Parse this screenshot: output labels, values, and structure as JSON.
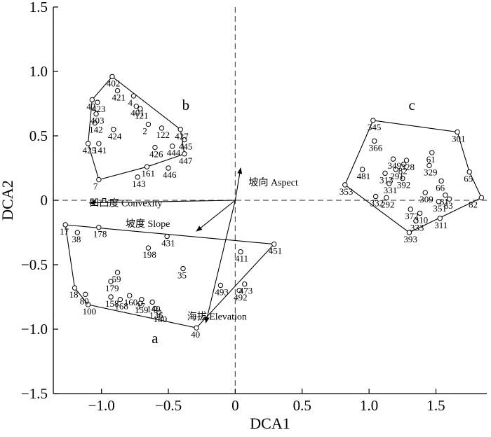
{
  "chart_data": {
    "type": "scatter",
    "xlabel": "DCA1",
    "ylabel": "DCA2",
    "xlim": [
      -1.36,
      1.88
    ],
    "ylim": [
      -1.5,
      1.5
    ],
    "xticks": [
      -1.0,
      -0.5,
      0,
      0.5,
      1.0,
      1.5
    ],
    "xtick_labels": [
      "−1.0",
      "−0.5",
      "0",
      "0.5",
      "1.0",
      "1.5"
    ],
    "yticks": [
      -1.5,
      -1.0,
      -0.5,
      0,
      0.5,
      1.0,
      1.5
    ],
    "ytick_labels": [
      "−1.5",
      "−1.0",
      "−0.5",
      "0",
      "0.5",
      "1.0",
      "1.5"
    ],
    "reference_lines": {
      "x": 0,
      "y": 0,
      "style": "dashed"
    },
    "points": [
      {
        "label": "402",
        "x": -0.92,
        "y": 0.96
      },
      {
        "label": "421",
        "x": -0.88,
        "y": 0.85
      },
      {
        "label": "4",
        "x": -0.76,
        "y": 0.81
      },
      {
        "label": "42",
        "x": -1.07,
        "y": 0.78
      },
      {
        "label": "423",
        "x": -1.03,
        "y": 0.76
      },
      {
        "label": "401",
        "x": -0.74,
        "y": 0.73
      },
      {
        "label": "121",
        "x": -0.71,
        "y": 0.71
      },
      {
        "label": "403",
        "x": -1.04,
        "y": 0.67
      },
      {
        "label": "2",
        "x": -0.65,
        "y": 0.59
      },
      {
        "label": "142",
        "x": -1.05,
        "y": 0.6
      },
      {
        "label": "424",
        "x": -0.91,
        "y": 0.55
      },
      {
        "label": "122",
        "x": -0.55,
        "y": 0.56
      },
      {
        "label": "427",
        "x": -0.41,
        "y": 0.55
      },
      {
        "label": "425",
        "x": -1.1,
        "y": 0.44
      },
      {
        "label": "141",
        "x": -1.02,
        "y": 0.44
      },
      {
        "label": "445",
        "x": -0.38,
        "y": 0.47
      },
      {
        "label": "426",
        "x": -0.6,
        "y": 0.41
      },
      {
        "label": "444",
        "x": -0.47,
        "y": 0.42
      },
      {
        "label": "447",
        "x": -0.38,
        "y": 0.36
      },
      {
        "label": "446",
        "x": -0.5,
        "y": 0.25
      },
      {
        "label": "161",
        "x": -0.66,
        "y": 0.26
      },
      {
        "label": "143",
        "x": -0.73,
        "y": 0.18
      },
      {
        "label": "7",
        "x": -1.02,
        "y": 0.16
      },
      {
        "label": "345",
        "x": 1.03,
        "y": 0.62
      },
      {
        "label": "301",
        "x": 1.66,
        "y": 0.53
      },
      {
        "label": "366",
        "x": 1.04,
        "y": 0.46
      },
      {
        "label": "61",
        "x": 1.47,
        "y": 0.37
      },
      {
        "label": "349",
        "x": 1.18,
        "y": 0.32
      },
      {
        "label": "328",
        "x": 1.28,
        "y": 0.31
      },
      {
        "label": "82",
        "x": 1.26,
        "y": 0.28
      },
      {
        "label": "329",
        "x": 1.45,
        "y": 0.27
      },
      {
        "label": "481",
        "x": 0.95,
        "y": 0.24
      },
      {
        "label": "313",
        "x": 1.12,
        "y": 0.21
      },
      {
        "label": "291",
        "x": 1.2,
        "y": 0.24
      },
      {
        "label": "392",
        "x": 1.25,
        "y": 0.17
      },
      {
        "label": "65",
        "x": 1.75,
        "y": 0.22
      },
      {
        "label": "331",
        "x": 1.15,
        "y": 0.13
      },
      {
        "label": "66",
        "x": 1.54,
        "y": 0.15
      },
      {
        "label": "353",
        "x": 0.82,
        "y": 0.12
      },
      {
        "label": "309",
        "x": 1.42,
        "y": 0.06
      },
      {
        "label": "332",
        "x": 1.05,
        "y": 0.03
      },
      {
        "label": "292",
        "x": 1.13,
        "y": 0.02
      },
      {
        "label": "81",
        "x": 1.57,
        "y": 0.04
      },
      {
        "label": "63",
        "x": 1.6,
        "y": 0.01
      },
      {
        "label": "351",
        "x": 1.52,
        "y": -0.01
      },
      {
        "label": "82",
        "x": 1.84,
        "y": 0.02
      },
      {
        "label": "372",
        "x": 1.31,
        "y": -0.07
      },
      {
        "label": "310",
        "x": 1.38,
        "y": -0.1
      },
      {
        "label": "311",
        "x": 1.53,
        "y": -0.14
      },
      {
        "label": "333",
        "x": 1.35,
        "y": -0.16
      },
      {
        "label": "393",
        "x": 1.3,
        "y": -0.25
      },
      {
        "label": "17",
        "x": -1.27,
        "y": -0.19
      },
      {
        "label": "38",
        "x": -1.18,
        "y": -0.25
      },
      {
        "label": "178",
        "x": -1.02,
        "y": -0.21
      },
      {
        "label": "431",
        "x": -0.51,
        "y": -0.28
      },
      {
        "label": "198",
        "x": -0.65,
        "y": -0.37
      },
      {
        "label": "451",
        "x": 0.29,
        "y": -0.34
      },
      {
        "label": "411",
        "x": 0.04,
        "y": -0.4
      },
      {
        "label": "35",
        "x": -0.39,
        "y": -0.53
      },
      {
        "label": "59",
        "x": -0.88,
        "y": -0.56
      },
      {
        "label": "179",
        "x": -0.93,
        "y": -0.63
      },
      {
        "label": "473",
        "x": 0.07,
        "y": -0.65
      },
      {
        "label": "493",
        "x": -0.11,
        "y": -0.66
      },
      {
        "label": "492",
        "x": 0.03,
        "y": -0.7
      },
      {
        "label": "18",
        "x": -1.2,
        "y": -0.68
      },
      {
        "label": "80",
        "x": -1.12,
        "y": -0.73
      },
      {
        "label": "160",
        "x": -0.79,
        "y": -0.74
      },
      {
        "label": "158",
        "x": -0.93,
        "y": -0.75
      },
      {
        "label": "168",
        "x": -0.86,
        "y": -0.77
      },
      {
        "label": "37",
        "x": -0.7,
        "y": -0.77
      },
      {
        "label": "159",
        "x": -0.71,
        "y": -0.8
      },
      {
        "label": "140",
        "x": -0.62,
        "y": -0.79
      },
      {
        "label": "100",
        "x": -1.1,
        "y": -0.81
      },
      {
        "label": "136",
        "x": -0.6,
        "y": -0.84
      },
      {
        "label": "180",
        "x": -0.57,
        "y": -0.87
      },
      {
        "label": "40",
        "x": -0.29,
        "y": -0.99
      }
    ],
    "groups": [
      {
        "name": "a",
        "label_pos": [
          -0.6,
          -1.11
        ],
        "hull": [
          "17",
          "451",
          "40",
          "100",
          "18"
        ]
      },
      {
        "name": "b",
        "label_pos": [
          -0.37,
          0.7
        ],
        "hull": [
          "402",
          "427",
          "447",
          "161",
          "7",
          "425",
          "42"
        ]
      },
      {
        "name": "c",
        "label_pos": [
          1.32,
          0.7
        ],
        "hull": [
          "345",
          "301",
          "65",
          "82",
          "393",
          "353"
        ]
      }
    ],
    "vectors": [
      {
        "label": "坡向 Aspect",
        "x": 0.04,
        "y": 0.25,
        "label_pos": [
          0.1,
          0.14
        ]
      },
      {
        "label": "凹凸度 Convexity",
        "x": -1.09,
        "y": -0.02,
        "label_pos": [
          -1.09,
          -0.02
        ]
      },
      {
        "label": "坡度 Slope",
        "x": -0.29,
        "y": -0.24,
        "label_pos": [
          -0.82,
          -0.18
        ]
      },
      {
        "label": "海拔 Elevation",
        "x": -0.22,
        "y": -0.95,
        "label_pos": [
          -0.36,
          -0.9
        ]
      }
    ]
  }
}
